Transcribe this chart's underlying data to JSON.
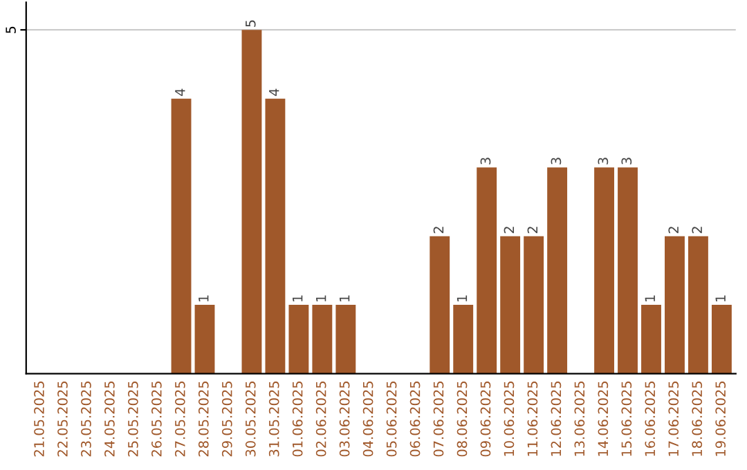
{
  "chart_data": {
    "type": "bar",
    "categories": [
      "21.05.2025",
      "22.05.2025",
      "23.05.2025",
      "24.05.2025",
      "25.05.2025",
      "26.05.2025",
      "27.05.2025",
      "28.05.2025",
      "29.05.2025",
      "30.05.2025",
      "31.05.2025",
      "01.06.2025",
      "02.06.2025",
      "03.06.2025",
      "04.06.2025",
      "05.06.2025",
      "06.06.2025",
      "07.06.2025",
      "08.06.2025",
      "09.06.2025",
      "10.06.2025",
      "11.06.2025",
      "12.06.2025",
      "13.06.2025",
      "14.06.2025",
      "15.06.2025",
      "16.06.2025",
      "17.06.2025",
      "18.06.2025",
      "19.06.2025"
    ],
    "values": [
      0,
      0,
      0,
      0,
      0,
      0,
      4,
      1,
      0,
      5,
      4,
      1,
      1,
      1,
      0,
      0,
      0,
      2,
      1,
      3,
      2,
      2,
      3,
      0,
      3,
      3,
      1,
      2,
      2,
      1
    ],
    "value_labels": [
      null,
      null,
      null,
      null,
      null,
      null,
      "4",
      "1",
      null,
      "5",
      "4",
      "1",
      "1",
      "1",
      null,
      null,
      null,
      "2",
      "1",
      "3",
      "2",
      "2",
      "3",
      null,
      "3",
      "3",
      "1",
      "2",
      "2",
      "1"
    ],
    "color": "#a0582a",
    "ylim": [
      0,
      5.4
    ],
    "yticks": [
      5
    ],
    "grid": "y"
  }
}
